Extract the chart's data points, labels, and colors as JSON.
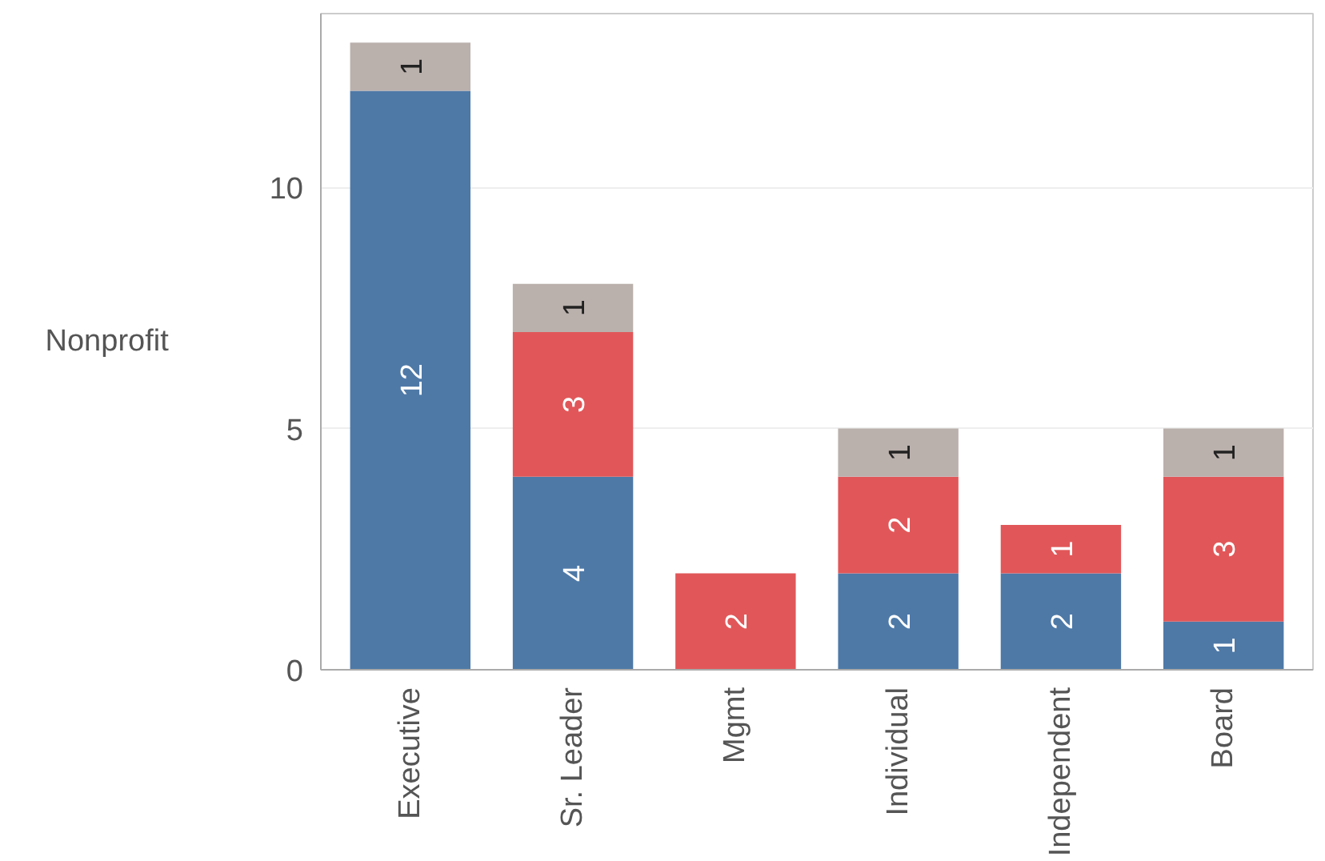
{
  "chart_data": {
    "type": "bar",
    "stacked": true,
    "ylabel": "Nonprofit",
    "categories": [
      "Executive",
      "Sr. Leader",
      "Mgmt",
      "Individual",
      "Independent",
      "Board"
    ],
    "series": [
      {
        "color": "#4e79a7",
        "values": [
          12,
          4,
          null,
          2,
          2,
          1
        ]
      },
      {
        "color": "#e15759",
        "values": [
          null,
          3,
          2,
          2,
          1,
          3
        ]
      },
      {
        "color": "#bab0ac",
        "values": [
          1,
          1,
          null,
          1,
          null,
          1
        ]
      }
    ],
    "ylim": [
      0,
      13.6
    ],
    "yticks": [
      0,
      5,
      10
    ],
    "grid": "y",
    "data_labels": true
  }
}
